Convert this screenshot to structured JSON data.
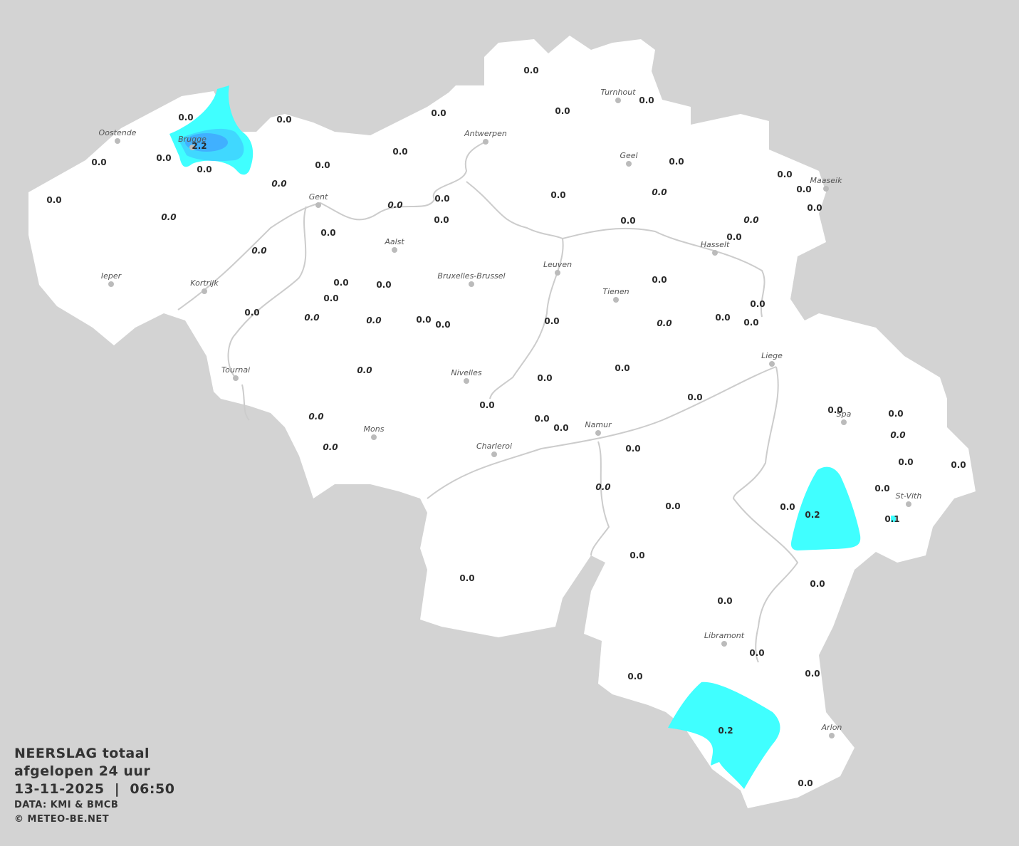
{
  "legend": {
    "title_line1": "NEERSLAG totaal",
    "title_line2": "afgelopen 24 uur",
    "datetime": "13-11-2025  |  06:50",
    "source": "DATA: KMI & BMCB",
    "copyright": "© METEO-BE.NET"
  },
  "colors": {
    "background": "#d3d3d3",
    "land": "#ffffff",
    "borders": "#cccccc",
    "rain_light": "#40ffff",
    "rain_mid": "#40d8ff",
    "rain_heavy": "#40b0ff"
  },
  "cities": [
    "Oostende",
    "Brugge",
    "Gent",
    "Antwerpen",
    "Turnhout",
    "Geel",
    "Maaseik",
    "Hasselt",
    "Aalst",
    "Leuven",
    "Bruxelles-Brussel",
    "Tienen",
    "Ieper",
    "Kortrijk",
    "Tournai",
    "Nivelles",
    "Liege",
    "Spa",
    "Mons",
    "Charleroi",
    "Namur",
    "St-Vith",
    "Libramont",
    "Arlon"
  ],
  "stations": [
    {
      "v": "0.0"
    },
    {
      "v": "0.0"
    },
    {
      "v": "0.0"
    },
    {
      "v": "0.0"
    },
    {
      "v": "0.0"
    },
    {
      "v": "2.2"
    },
    {
      "v": "0.0"
    },
    {
      "v": "0.0",
      "i": true
    },
    {
      "v": "0.0",
      "i": true
    },
    {
      "v": "0.0"
    },
    {
      "v": "0.0"
    },
    {
      "v": "0.0"
    },
    {
      "v": "0.0"
    },
    {
      "v": "0.0"
    },
    {
      "v": "0.0"
    },
    {
      "v": "0.0"
    },
    {
      "v": "0.0",
      "i": true
    },
    {
      "v": "0.0"
    },
    {
      "v": "0.0"
    },
    {
      "v": "0.0"
    },
    {
      "v": "0.0"
    },
    {
      "v": "0.0"
    },
    {
      "v": "0.0",
      "i": true
    },
    {
      "v": "0.0"
    },
    {
      "v": "0.0"
    },
    {
      "v": "0.0"
    },
    {
      "v": "0.0",
      "i": true
    },
    {
      "v": "0.0"
    },
    {
      "v": "0.0",
      "i": true
    },
    {
      "v": "0.0"
    },
    {
      "v": "0.0"
    },
    {
      "v": "0.0"
    },
    {
      "v": "0.0"
    },
    {
      "v": "0.0",
      "i": true
    },
    {
      "v": "0.0",
      "i": true
    },
    {
      "v": "0.0"
    },
    {
      "v": "0.0"
    },
    {
      "v": "0.0"
    },
    {
      "v": "0.0"
    },
    {
      "v": "0.0",
      "i": true
    },
    {
      "v": "0.0"
    },
    {
      "v": "0.0"
    },
    {
      "v": "0.0"
    },
    {
      "v": "0.0",
      "i": true
    },
    {
      "v": "0.0"
    },
    {
      "v": "0.0"
    },
    {
      "v": "0.0"
    },
    {
      "v": "0.0"
    },
    {
      "v": "0.0",
      "i": true
    },
    {
      "v": "0.0",
      "i": true
    },
    {
      "v": "0.0"
    },
    {
      "v": "0.0"
    },
    {
      "v": "0.0"
    },
    {
      "v": "0.0",
      "i": true
    },
    {
      "v": "0.0"
    },
    {
      "v": "0.0"
    },
    {
      "v": "0.2"
    },
    {
      "v": "0.0"
    },
    {
      "v": "0.0"
    },
    {
      "v": "0.0",
      "i": true
    },
    {
      "v": "0.0"
    },
    {
      "v": "0.0"
    },
    {
      "v": "0.0"
    },
    {
      "v": "0.1"
    },
    {
      "v": "0.0"
    },
    {
      "v": "0.0"
    },
    {
      "v": "0.0"
    },
    {
      "v": "0.0"
    },
    {
      "v": "0.0"
    },
    {
      "v": "0.0"
    },
    {
      "v": "0.0"
    },
    {
      "v": "0.2"
    },
    {
      "v": "0.0"
    }
  ]
}
